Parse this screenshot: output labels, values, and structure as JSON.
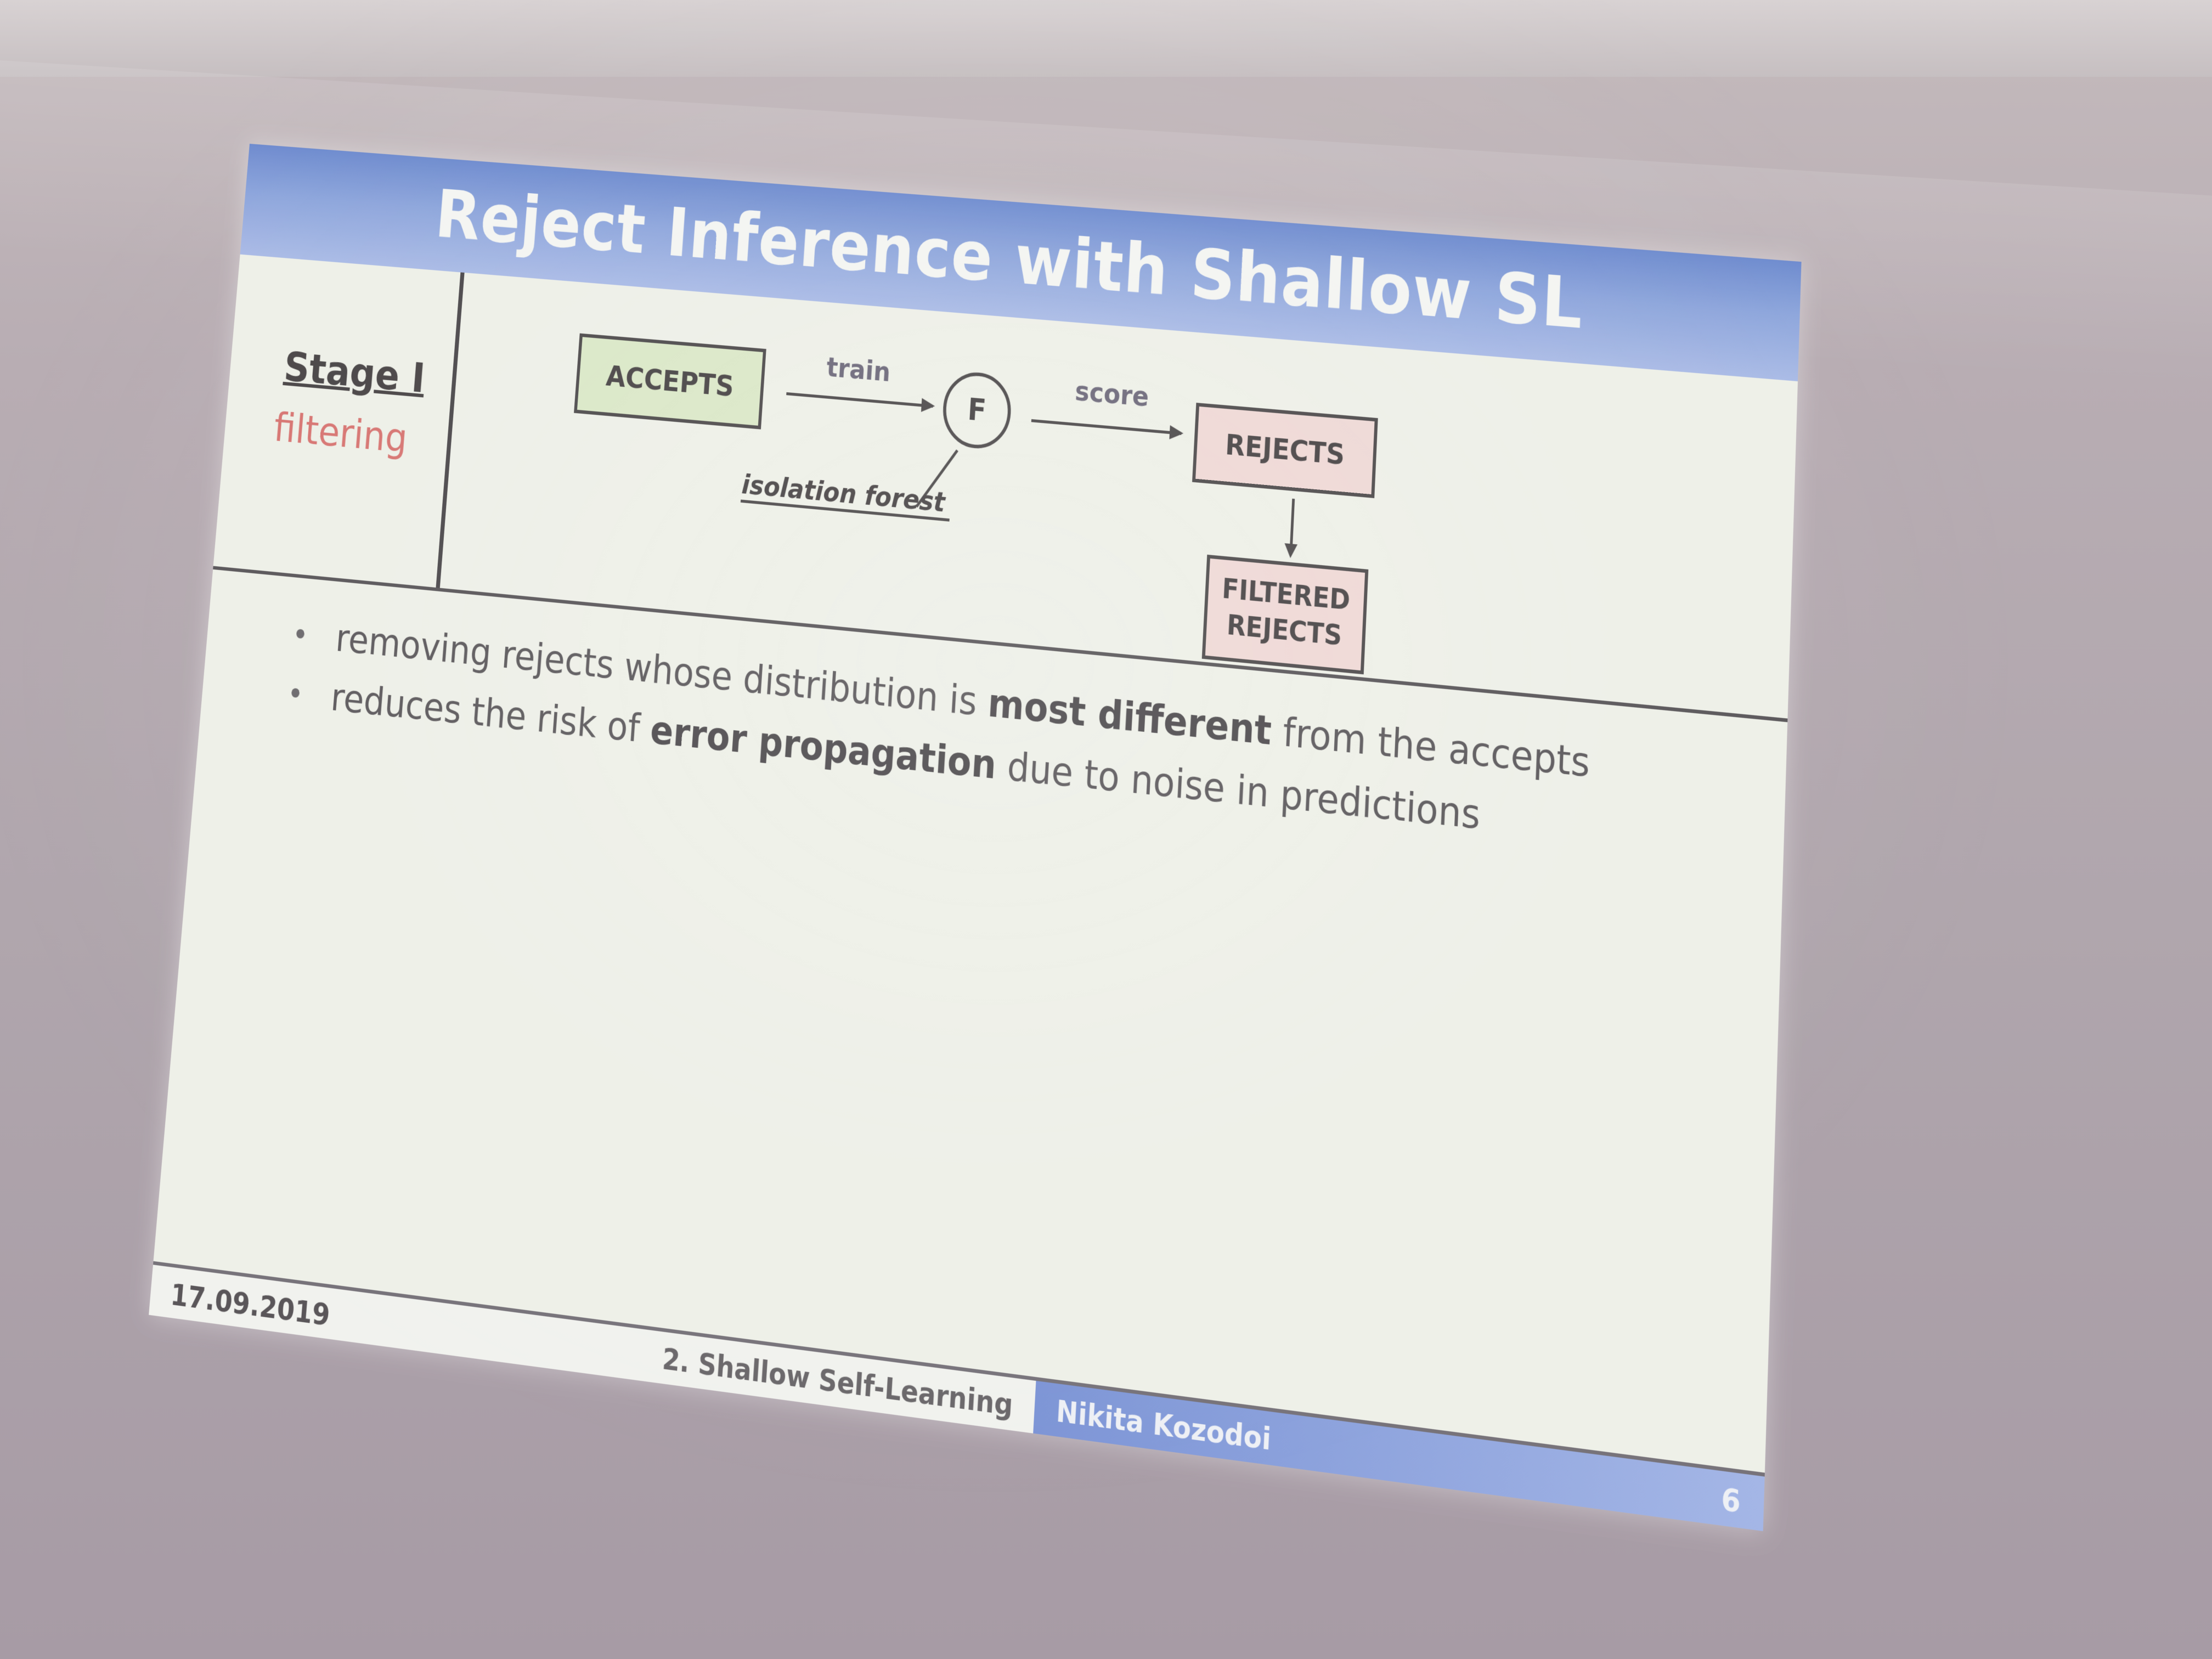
{
  "slide": {
    "title": "Reject Inference with Shallow SL",
    "stage": {
      "label": "Stage I",
      "name": "filtering"
    },
    "diagram": {
      "accepts": "ACCEPTS",
      "train": "train",
      "model": "F",
      "score": "score",
      "rejects": "REJECTS",
      "filtered_line1": "FILTERED",
      "filtered_line2": "REJECTS",
      "model_name": "isolation forest"
    },
    "bullets": [
      {
        "pre": "removing rejects whose distribution is ",
        "bold": "most different",
        "post": " from the accepts"
      },
      {
        "pre": "reduces the risk of ",
        "bold": "error propagation",
        "post": " due to noise in predictions"
      }
    ],
    "footer": {
      "date": "17.09.2019",
      "section": "2. Shallow Self-Learning",
      "author": "Nikita Kozodoi",
      "page": "6"
    }
  }
}
